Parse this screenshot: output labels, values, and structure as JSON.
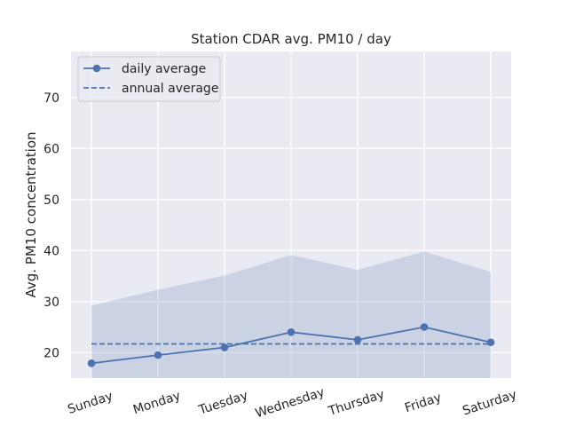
{
  "chart_data": {
    "type": "line",
    "title": "Station CDAR avg. PM10 / day",
    "xlabel": "",
    "ylabel": "Avg. PM10 concentration",
    "categories": [
      "Sunday",
      "Monday",
      "Tuesday",
      "Wednesday",
      "Thursday",
      "Friday",
      "Saturday"
    ],
    "series": [
      {
        "name": "daily average",
        "values": [
          17.9,
          19.5,
          21.0,
          24.0,
          22.5,
          25.0,
          22.0
        ],
        "style": "solid",
        "marker": "circle",
        "color": "#4c72b0"
      },
      {
        "name": "annual average",
        "values": [
          21.7,
          21.7,
          21.7,
          21.7,
          21.7,
          21.7,
          21.7
        ],
        "style": "dashed",
        "color": "#4c72b0"
      }
    ],
    "band": {
      "lower": [
        0,
        0,
        0,
        0,
        0,
        0,
        0
      ],
      "upper": [
        29.2,
        32.3,
        35.1,
        39.1,
        36.2,
        39.8,
        35.8
      ],
      "color": "#4c72b0"
    },
    "ylim": [
      15,
      79
    ],
    "yticks": [
      20,
      30,
      40,
      50,
      60,
      70
    ],
    "grid": true,
    "legend_position": "top-left",
    "background": "#eaeaf2"
  }
}
